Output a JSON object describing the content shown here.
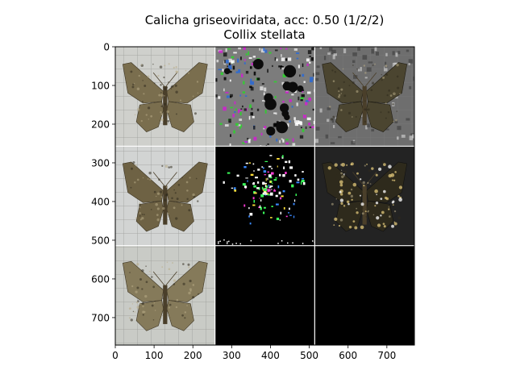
{
  "figure": {
    "title_line1": "Calicha griseoviridata, acc: 0.50 (1/2/2)",
    "title_line2": "Collix stellata"
  },
  "chart_data": {
    "type": "image-grid",
    "title": "Calicha griseoviridata, acc: 0.50 (1/2/2)",
    "subtitle": "Collix stellata",
    "xlim": [
      0,
      771
    ],
    "ylim": [
      771,
      0
    ],
    "xticks": [
      0,
      100,
      200,
      300,
      400,
      500,
      600,
      700
    ],
    "yticks": [
      0,
      100,
      200,
      300,
      400,
      500,
      600,
      700
    ],
    "xtick_labels": [
      "0",
      "100",
      "200",
      "300",
      "400",
      "500",
      "600",
      "700"
    ],
    "ytick_labels": [
      "0",
      "100",
      "200",
      "300",
      "400",
      "500",
      "600",
      "700"
    ],
    "grid": false,
    "tiles": [
      {
        "row": 0,
        "col": 0,
        "content": "moth-photo",
        "background": "#cfd0cc",
        "wing_color": "#7a6e4e"
      },
      {
        "row": 0,
        "col": 1,
        "content": "gradient-noise",
        "background": "#7c7c7c"
      },
      {
        "row": 0,
        "col": 2,
        "content": "moth-overlay",
        "background": "#6e6e6e",
        "wing_color": "#4b4530"
      },
      {
        "row": 1,
        "col": 0,
        "content": "moth-photo",
        "background": "#d2d4d3",
        "wing_color": "#6e6244"
      },
      {
        "row": 1,
        "col": 1,
        "content": "saliency-sparse",
        "background": "#000000"
      },
      {
        "row": 1,
        "col": 2,
        "content": "moth-dark",
        "background": "#232323",
        "wing_color": "#2e2a1c"
      },
      {
        "row": 2,
        "col": 0,
        "content": "moth-photo",
        "background": "#c9cbc6",
        "wing_color": "#857a5a"
      },
      {
        "row": 2,
        "col": 1,
        "content": "blank",
        "background": "#000000"
      },
      {
        "row": 2,
        "col": 2,
        "content": "blank",
        "background": "#000000"
      }
    ]
  }
}
